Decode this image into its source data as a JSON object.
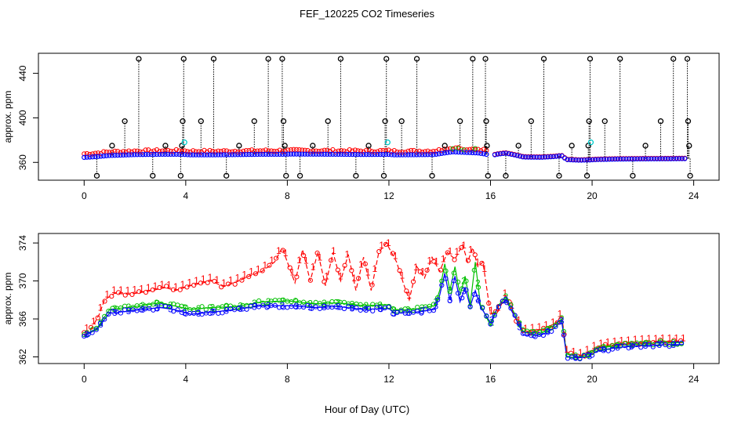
{
  "title": "FEF_120225  CO2 Timeseries",
  "xlabel": "Hour of Day (UTC)",
  "colors": {
    "series1": "#ff0000",
    "series2": "#00c000",
    "series3": "#0000ff",
    "flag": "#00cccc",
    "outlier": "#000000"
  },
  "chart_data": [
    {
      "type": "scatter",
      "ylabel": "approx. ppm",
      "xlim": [
        -1.8,
        25.0
      ],
      "ylim": [
        344,
        458
      ],
      "xticks": [
        0,
        4,
        8,
        12,
        16,
        20,
        24
      ],
      "yticks": [
        360,
        400,
        440
      ],
      "grid": false,
      "baseline": [
        [
          0,
          364.5
        ],
        [
          0.5,
          365.2
        ],
        [
          1,
          366.2
        ],
        [
          2,
          367.0
        ],
        [
          3,
          367.3
        ],
        [
          3.8,
          367.3
        ],
        [
          4.2,
          366.8
        ],
        [
          5,
          366.8
        ],
        [
          6,
          367.0
        ],
        [
          7,
          367.3
        ],
        [
          7.8,
          367.3
        ],
        [
          8.2,
          367.5
        ],
        [
          9,
          367.4
        ],
        [
          10,
          367.3
        ],
        [
          11,
          367.1
        ],
        [
          12,
          367.2
        ],
        [
          12.2,
          366.8
        ],
        [
          13,
          366.9
        ],
        [
          13.8,
          367.1
        ],
        [
          14.2,
          368.5
        ],
        [
          14.5,
          369.5
        ],
        [
          15,
          369.0
        ],
        [
          15.5,
          368.5
        ],
        [
          15.8,
          367.5
        ],
        [
          16,
          366.0
        ],
        [
          16.3,
          367.5
        ],
        [
          16.6,
          368.3
        ],
        [
          17,
          366.5
        ],
        [
          17.3,
          364.8
        ],
        [
          18,
          364.6
        ],
        [
          18.5,
          365.2
        ],
        [
          18.8,
          366.0
        ],
        [
          19,
          362.5
        ],
        [
          19.5,
          362.0
        ],
        [
          19.9,
          362.2
        ],
        [
          20.2,
          362.6
        ],
        [
          21,
          363.0
        ],
        [
          22,
          363.2
        ],
        [
          23,
          363.3
        ],
        [
          23.6,
          363.4
        ]
      ],
      "outliers": [
        {
          "x": 0.5,
          "y": 348
        },
        {
          "x": 1.1,
          "y": 375
        },
        {
          "x": 1.6,
          "y": 397
        },
        {
          "x": 2.15,
          "y": 453
        },
        {
          "x": 2.7,
          "y": 348
        },
        {
          "x": 3.2,
          "y": 375
        },
        {
          "x": 3.8,
          "y": 348
        },
        {
          "x": 3.85,
          "y": 375
        },
        {
          "x": 3.88,
          "y": 397
        },
        {
          "x": 3.92,
          "y": 453
        },
        {
          "x": 4.6,
          "y": 397
        },
        {
          "x": 5.1,
          "y": 453
        },
        {
          "x": 5.6,
          "y": 348
        },
        {
          "x": 6.1,
          "y": 375
        },
        {
          "x": 6.7,
          "y": 397
        },
        {
          "x": 7.25,
          "y": 453
        },
        {
          "x": 7.8,
          "y": 453
        },
        {
          "x": 7.85,
          "y": 397
        },
        {
          "x": 7.9,
          "y": 375
        },
        {
          "x": 7.95,
          "y": 348
        },
        {
          "x": 8.5,
          "y": 348
        },
        {
          "x": 9.0,
          "y": 375
        },
        {
          "x": 9.6,
          "y": 397
        },
        {
          "x": 10.1,
          "y": 453
        },
        {
          "x": 10.7,
          "y": 348
        },
        {
          "x": 11.2,
          "y": 375
        },
        {
          "x": 11.8,
          "y": 348
        },
        {
          "x": 11.85,
          "y": 397
        },
        {
          "x": 11.9,
          "y": 453
        },
        {
          "x": 12.5,
          "y": 397
        },
        {
          "x": 13.1,
          "y": 453
        },
        {
          "x": 13.7,
          "y": 348
        },
        {
          "x": 14.2,
          "y": 375
        },
        {
          "x": 14.8,
          "y": 397
        },
        {
          "x": 15.3,
          "y": 453
        },
        {
          "x": 15.8,
          "y": 453
        },
        {
          "x": 15.83,
          "y": 397
        },
        {
          "x": 15.86,
          "y": 375
        },
        {
          "x": 15.9,
          "y": 348
        },
        {
          "x": 16.6,
          "y": 348
        },
        {
          "x": 17.1,
          "y": 375
        },
        {
          "x": 17.6,
          "y": 397
        },
        {
          "x": 18.1,
          "y": 453
        },
        {
          "x": 18.7,
          "y": 348
        },
        {
          "x": 19.2,
          "y": 375
        },
        {
          "x": 19.8,
          "y": 348
        },
        {
          "x": 19.85,
          "y": 375
        },
        {
          "x": 19.88,
          "y": 397
        },
        {
          "x": 19.92,
          "y": 453
        },
        {
          "x": 20.5,
          "y": 397
        },
        {
          "x": 21.1,
          "y": 453
        },
        {
          "x": 21.6,
          "y": 348
        },
        {
          "x": 22.1,
          "y": 375
        },
        {
          "x": 22.7,
          "y": 397
        },
        {
          "x": 23.2,
          "y": 453
        },
        {
          "x": 23.75,
          "y": 453
        },
        {
          "x": 23.78,
          "y": 397
        },
        {
          "x": 23.82,
          "y": 375
        },
        {
          "x": 23.86,
          "y": 348
        }
      ],
      "flagged": [
        {
          "x": 3.95,
          "y": 378
        },
        {
          "x": 11.95,
          "y": 378
        },
        {
          "x": 19.95,
          "y": 378
        }
      ]
    },
    {
      "type": "line",
      "ylabel": "approx. ppm",
      "xlim": [
        -1.8,
        25.0
      ],
      "ylim": [
        361.3,
        375.0
      ],
      "xticks": [
        0,
        4,
        8,
        12,
        16,
        20,
        24
      ],
      "yticks": [
        362,
        366,
        370,
        374
      ],
      "grid": false,
      "series": [
        {
          "name": "1",
          "color": "#ff0000",
          "values": [
            [
              0,
              364.5
            ],
            [
              0.3,
              365.0
            ],
            [
              0.6,
              366.5
            ],
            [
              0.8,
              368.0
            ],
            [
              1.2,
              368.7
            ],
            [
              1.8,
              368.6
            ],
            [
              2.5,
              368.9
            ],
            [
              3.2,
              369.3
            ],
            [
              3.6,
              369.0
            ],
            [
              4.2,
              369.5
            ],
            [
              5,
              370.0
            ],
            [
              5.5,
              369.4
            ],
            [
              6,
              369.9
            ],
            [
              6.5,
              370.5
            ],
            [
              7,
              371.0
            ],
            [
              7.5,
              372.0
            ],
            [
              7.8,
              373.5
            ],
            [
              8,
              372.0
            ],
            [
              8.3,
              369.8
            ],
            [
              8.6,
              373.3
            ],
            [
              8.9,
              370.0
            ],
            [
              9.2,
              373.0
            ],
            [
              9.5,
              369.5
            ],
            [
              9.8,
              373.0
            ],
            [
              10.1,
              370.0
            ],
            [
              10.4,
              372.8
            ],
            [
              10.7,
              369.0
            ],
            [
              11,
              372.5
            ],
            [
              11.3,
              369.0
            ],
            [
              11.6,
              373.0
            ],
            [
              11.9,
              374.0
            ],
            [
              12.3,
              372.0
            ],
            [
              12.6,
              369.5
            ],
            [
              12.8,
              368.0
            ],
            [
              13.1,
              371.5
            ],
            [
              13.4,
              370.3
            ],
            [
              13.7,
              372.5
            ],
            [
              14,
              371.0
            ],
            [
              14.3,
              373.0
            ],
            [
              14.6,
              372.3
            ],
            [
              14.9,
              373.8
            ],
            [
              15.1,
              372.0
            ],
            [
              15.3,
              373.5
            ],
            [
              15.5,
              371.5
            ],
            [
              15.7,
              372.0
            ],
            [
              16,
              366.5
            ],
            [
              16.3,
              366.8
            ],
            [
              16.6,
              368.5
            ],
            [
              17,
              366.0
            ],
            [
              17.3,
              364.6
            ],
            [
              18,
              364.8
            ],
            [
              18.5,
              365.3
            ],
            [
              18.8,
              366.4
            ],
            [
              19,
              362.4
            ],
            [
              19.5,
              362.0
            ],
            [
              19.9,
              362.5
            ],
            [
              20.2,
              363.0
            ],
            [
              21,
              363.3
            ],
            [
              22,
              363.5
            ],
            [
              23,
              363.6
            ],
            [
              23.6,
              363.6
            ]
          ]
        },
        {
          "name": "2",
          "color": "#00c000",
          "values": [
            [
              0,
              364.3
            ],
            [
              0.5,
              365.0
            ],
            [
              1,
              367.0
            ],
            [
              2,
              367.3
            ],
            [
              3,
              367.7
            ],
            [
              3.5,
              367.4
            ],
            [
              4.2,
              367.0
            ],
            [
              5,
              367.2
            ],
            [
              6,
              367.3
            ],
            [
              7,
              367.8
            ],
            [
              8,
              367.9
            ],
            [
              9,
              367.6
            ],
            [
              10,
              367.7
            ],
            [
              11,
              367.4
            ],
            [
              12,
              367.5
            ],
            [
              12.2,
              366.9
            ],
            [
              13,
              367.0
            ],
            [
              13.8,
              367.4
            ],
            [
              14,
              369.0
            ],
            [
              14.2,
              371.8
            ],
            [
              14.4,
              369.0
            ],
            [
              14.6,
              371.5
            ],
            [
              14.8,
              368.5
            ],
            [
              15.0,
              370.5
            ],
            [
              15.2,
              367.5
            ],
            [
              15.4,
              372.0
            ],
            [
              15.6,
              367.5
            ],
            [
              16,
              365.3
            ],
            [
              16.3,
              367.4
            ],
            [
              16.6,
              368.3
            ],
            [
              17,
              366.3
            ],
            [
              17.3,
              364.6
            ],
            [
              18,
              364.5
            ],
            [
              18.5,
              365.3
            ],
            [
              18.8,
              366.0
            ],
            [
              19,
              362.3
            ],
            [
              19.5,
              362.0
            ],
            [
              19.9,
              362.3
            ],
            [
              20.2,
              362.9
            ],
            [
              21,
              363.2
            ],
            [
              22,
              363.4
            ],
            [
              23,
              363.5
            ],
            [
              23.6,
              363.5
            ]
          ]
        },
        {
          "name": "3",
          "color": "#0000ff",
          "values": [
            [
              0,
              364.2
            ],
            [
              0.5,
              364.9
            ],
            [
              1,
              366.6
            ],
            [
              2,
              366.9
            ],
            [
              3,
              367.2
            ],
            [
              3.5,
              367.0
            ],
            [
              4.2,
              366.5
            ],
            [
              5,
              366.7
            ],
            [
              6,
              367.0
            ],
            [
              7,
              367.4
            ],
            [
              8,
              367.4
            ],
            [
              9,
              367.2
            ],
            [
              10,
              367.3
            ],
            [
              11,
              367.0
            ],
            [
              12,
              367.1
            ],
            [
              12.2,
              366.6
            ],
            [
              13,
              366.7
            ],
            [
              13.8,
              367.0
            ],
            [
              14,
              368.5
            ],
            [
              14.2,
              370.8
            ],
            [
              14.4,
              368.0
            ],
            [
              14.6,
              370.5
            ],
            [
              14.8,
              367.8
            ],
            [
              15.0,
              369.3
            ],
            [
              15.2,
              367.3
            ],
            [
              15.4,
              369.0
            ],
            [
              15.6,
              367.3
            ],
            [
              16,
              365.6
            ],
            [
              16.3,
              367.3
            ],
            [
              16.6,
              368.0
            ],
            [
              17,
              366.0
            ],
            [
              17.3,
              364.3
            ],
            [
              18,
              364.3
            ],
            [
              18.5,
              365.0
            ],
            [
              18.8,
              365.8
            ],
            [
              19,
              362.0
            ],
            [
              19.5,
              361.9
            ],
            [
              19.9,
              362.1
            ],
            [
              20.2,
              362.6
            ],
            [
              21,
              363.0
            ],
            [
              22,
              363.2
            ],
            [
              23,
              363.3
            ],
            [
              23.6,
              363.3
            ]
          ]
        }
      ]
    }
  ]
}
